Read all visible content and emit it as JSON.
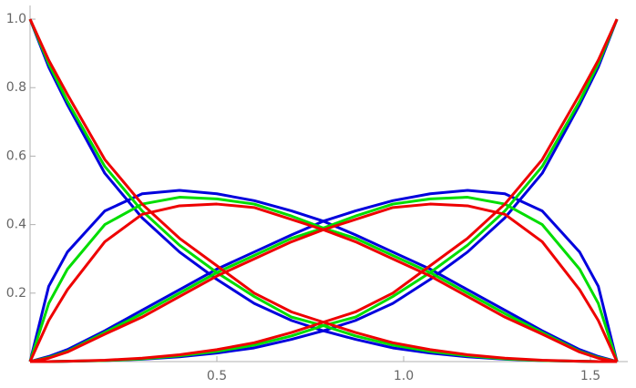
{
  "chart_data": {
    "type": "line",
    "x": [
      0,
      0.05,
      0.1,
      0.2,
      0.3,
      0.4,
      0.5,
      0.6,
      0.7,
      0.785,
      0.871,
      0.971,
      1.071,
      1.171,
      1.271,
      1.371,
      1.471,
      1.521,
      1.571
    ],
    "series": [
      {
        "color": "#0000dd",
        "values": [
          1,
          0.86,
          0.75,
          0.55,
          0.42,
          0.32,
          0.24,
          0.17,
          0.12,
          0.09,
          0.065,
          0.04,
          0.025,
          0.014,
          0.007,
          0.003,
          0.001,
          0,
          0
        ]
      },
      {
        "color": "#0000dd",
        "values": [
          0,
          0.22,
          0.32,
          0.44,
          0.49,
          0.5,
          0.49,
          0.47,
          0.44,
          0.41,
          0.37,
          0.32,
          0.27,
          0.21,
          0.15,
          0.09,
          0.035,
          0.015,
          0
        ]
      },
      {
        "color": "#0000dd",
        "values": [
          0,
          0.015,
          0.035,
          0.09,
          0.15,
          0.21,
          0.27,
          0.32,
          0.37,
          0.41,
          0.44,
          0.47,
          0.49,
          0.5,
          0.49,
          0.44,
          0.32,
          0.22,
          0
        ]
      },
      {
        "color": "#0000dd",
        "values": [
          0,
          0,
          0.001,
          0.003,
          0.007,
          0.014,
          0.025,
          0.04,
          0.065,
          0.09,
          0.12,
          0.17,
          0.24,
          0.32,
          0.42,
          0.55,
          0.75,
          0.86,
          1
        ]
      },
      {
        "color": "#00dd00",
        "values": [
          1,
          0.87,
          0.76,
          0.57,
          0.44,
          0.34,
          0.26,
          0.19,
          0.13,
          0.105,
          0.075,
          0.048,
          0.03,
          0.017,
          0.008,
          0.003,
          0.001,
          0,
          0
        ]
      },
      {
        "color": "#00dd00",
        "values": [
          0,
          0.17,
          0.27,
          0.4,
          0.46,
          0.48,
          0.475,
          0.46,
          0.425,
          0.39,
          0.36,
          0.31,
          0.26,
          0.2,
          0.14,
          0.085,
          0.03,
          0.012,
          0
        ]
      },
      {
        "color": "#00dd00",
        "values": [
          0,
          0.012,
          0.03,
          0.085,
          0.14,
          0.2,
          0.26,
          0.31,
          0.36,
          0.39,
          0.425,
          0.46,
          0.475,
          0.48,
          0.46,
          0.4,
          0.27,
          0.17,
          0
        ]
      },
      {
        "color": "#00dd00",
        "values": [
          0,
          0,
          0.001,
          0.003,
          0.008,
          0.017,
          0.03,
          0.048,
          0.075,
          0.105,
          0.13,
          0.19,
          0.26,
          0.34,
          0.44,
          0.57,
          0.76,
          0.87,
          1
        ]
      },
      {
        "color": "#ee0000",
        "values": [
          1,
          0.88,
          0.78,
          0.59,
          0.46,
          0.36,
          0.28,
          0.2,
          0.145,
          0.115,
          0.085,
          0.055,
          0.035,
          0.02,
          0.01,
          0.004,
          0.001,
          0,
          0
        ]
      },
      {
        "color": "#ee0000",
        "values": [
          0,
          0.12,
          0.21,
          0.35,
          0.43,
          0.455,
          0.46,
          0.45,
          0.415,
          0.385,
          0.35,
          0.3,
          0.25,
          0.19,
          0.13,
          0.08,
          0.028,
          0.01,
          0
        ]
      },
      {
        "color": "#ee0000",
        "values": [
          0,
          0.01,
          0.028,
          0.08,
          0.13,
          0.19,
          0.25,
          0.3,
          0.35,
          0.385,
          0.415,
          0.45,
          0.46,
          0.455,
          0.43,
          0.35,
          0.21,
          0.12,
          0
        ]
      },
      {
        "color": "#ee0000",
        "values": [
          0,
          0,
          0.001,
          0.004,
          0.01,
          0.02,
          0.035,
          0.055,
          0.085,
          0.115,
          0.145,
          0.2,
          0.28,
          0.36,
          0.46,
          0.59,
          0.78,
          0.88,
          1
        ]
      }
    ],
    "xlim": [
      0,
      1.6
    ],
    "ylim": [
      0,
      1.04
    ],
    "xticks": [
      0.5,
      {
        "value": 1,
        "label": "1.0"
      },
      1.5
    ],
    "yticks": [
      0.2,
      0.4,
      0.6,
      0.8,
      {
        "value": 1,
        "label": "1.0"
      }
    ]
  }
}
